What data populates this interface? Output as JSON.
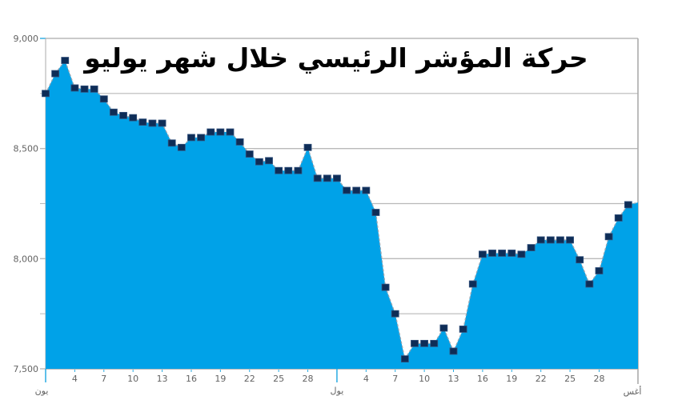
{
  "chart_data": {
    "type": "area",
    "title": "حركة المؤشر الرئيسي خلال شهر يوليو",
    "ylim": [
      7500,
      9000
    ],
    "y_major_ticks": [
      {
        "value": 9000,
        "label": "9,000"
      },
      {
        "value": 8500,
        "label": "8,500"
      },
      {
        "value": 8000,
        "label": "8,000"
      },
      {
        "value": 7500,
        "label": "7,500"
      }
    ],
    "y_minor_ticks": [
      8750,
      8250,
      7750
    ],
    "x_day_ticks": [
      4,
      7,
      10,
      13,
      16,
      19,
      22,
      25,
      28
    ],
    "month_labels": {
      "june": "يون",
      "july": "يول",
      "august": "أغس"
    },
    "grid": true,
    "legend_position": "none",
    "series": {
      "june": [
        8750,
        8840,
        8900,
        8775,
        8770,
        8770,
        8725,
        8665,
        8650,
        8640,
        8620,
        8615,
        8615,
        8525,
        8505,
        8550,
        8550,
        8575,
        8575,
        8575,
        8530,
        8475,
        8440,
        8445,
        8400,
        8400,
        8400,
        8505,
        8365,
        8365
      ],
      "july": [
        8365,
        8310,
        8310,
        8310,
        8210,
        7870,
        7750,
        7545,
        7615,
        7615,
        7615,
        7685,
        7580,
        7680,
        7885,
        8020,
        8025,
        8025,
        8025,
        8020,
        8050,
        8085,
        8085,
        8085,
        8085,
        7995,
        7885,
        7945,
        8100,
        8185,
        8245
      ]
    },
    "right_edge_value": 8255,
    "colors": {
      "area_fill": "#00A2E8",
      "marker_fill": "#0E2D57",
      "marker_border": "#33517C",
      "series_line": "#98A6B4",
      "gridline": "#B9B9B9",
      "axis_line": "#ABABAB",
      "tick_label": "#636363",
      "month_tick": "#29ABE2",
      "title_color": "#000000",
      "background": "#FFFFFF"
    }
  }
}
